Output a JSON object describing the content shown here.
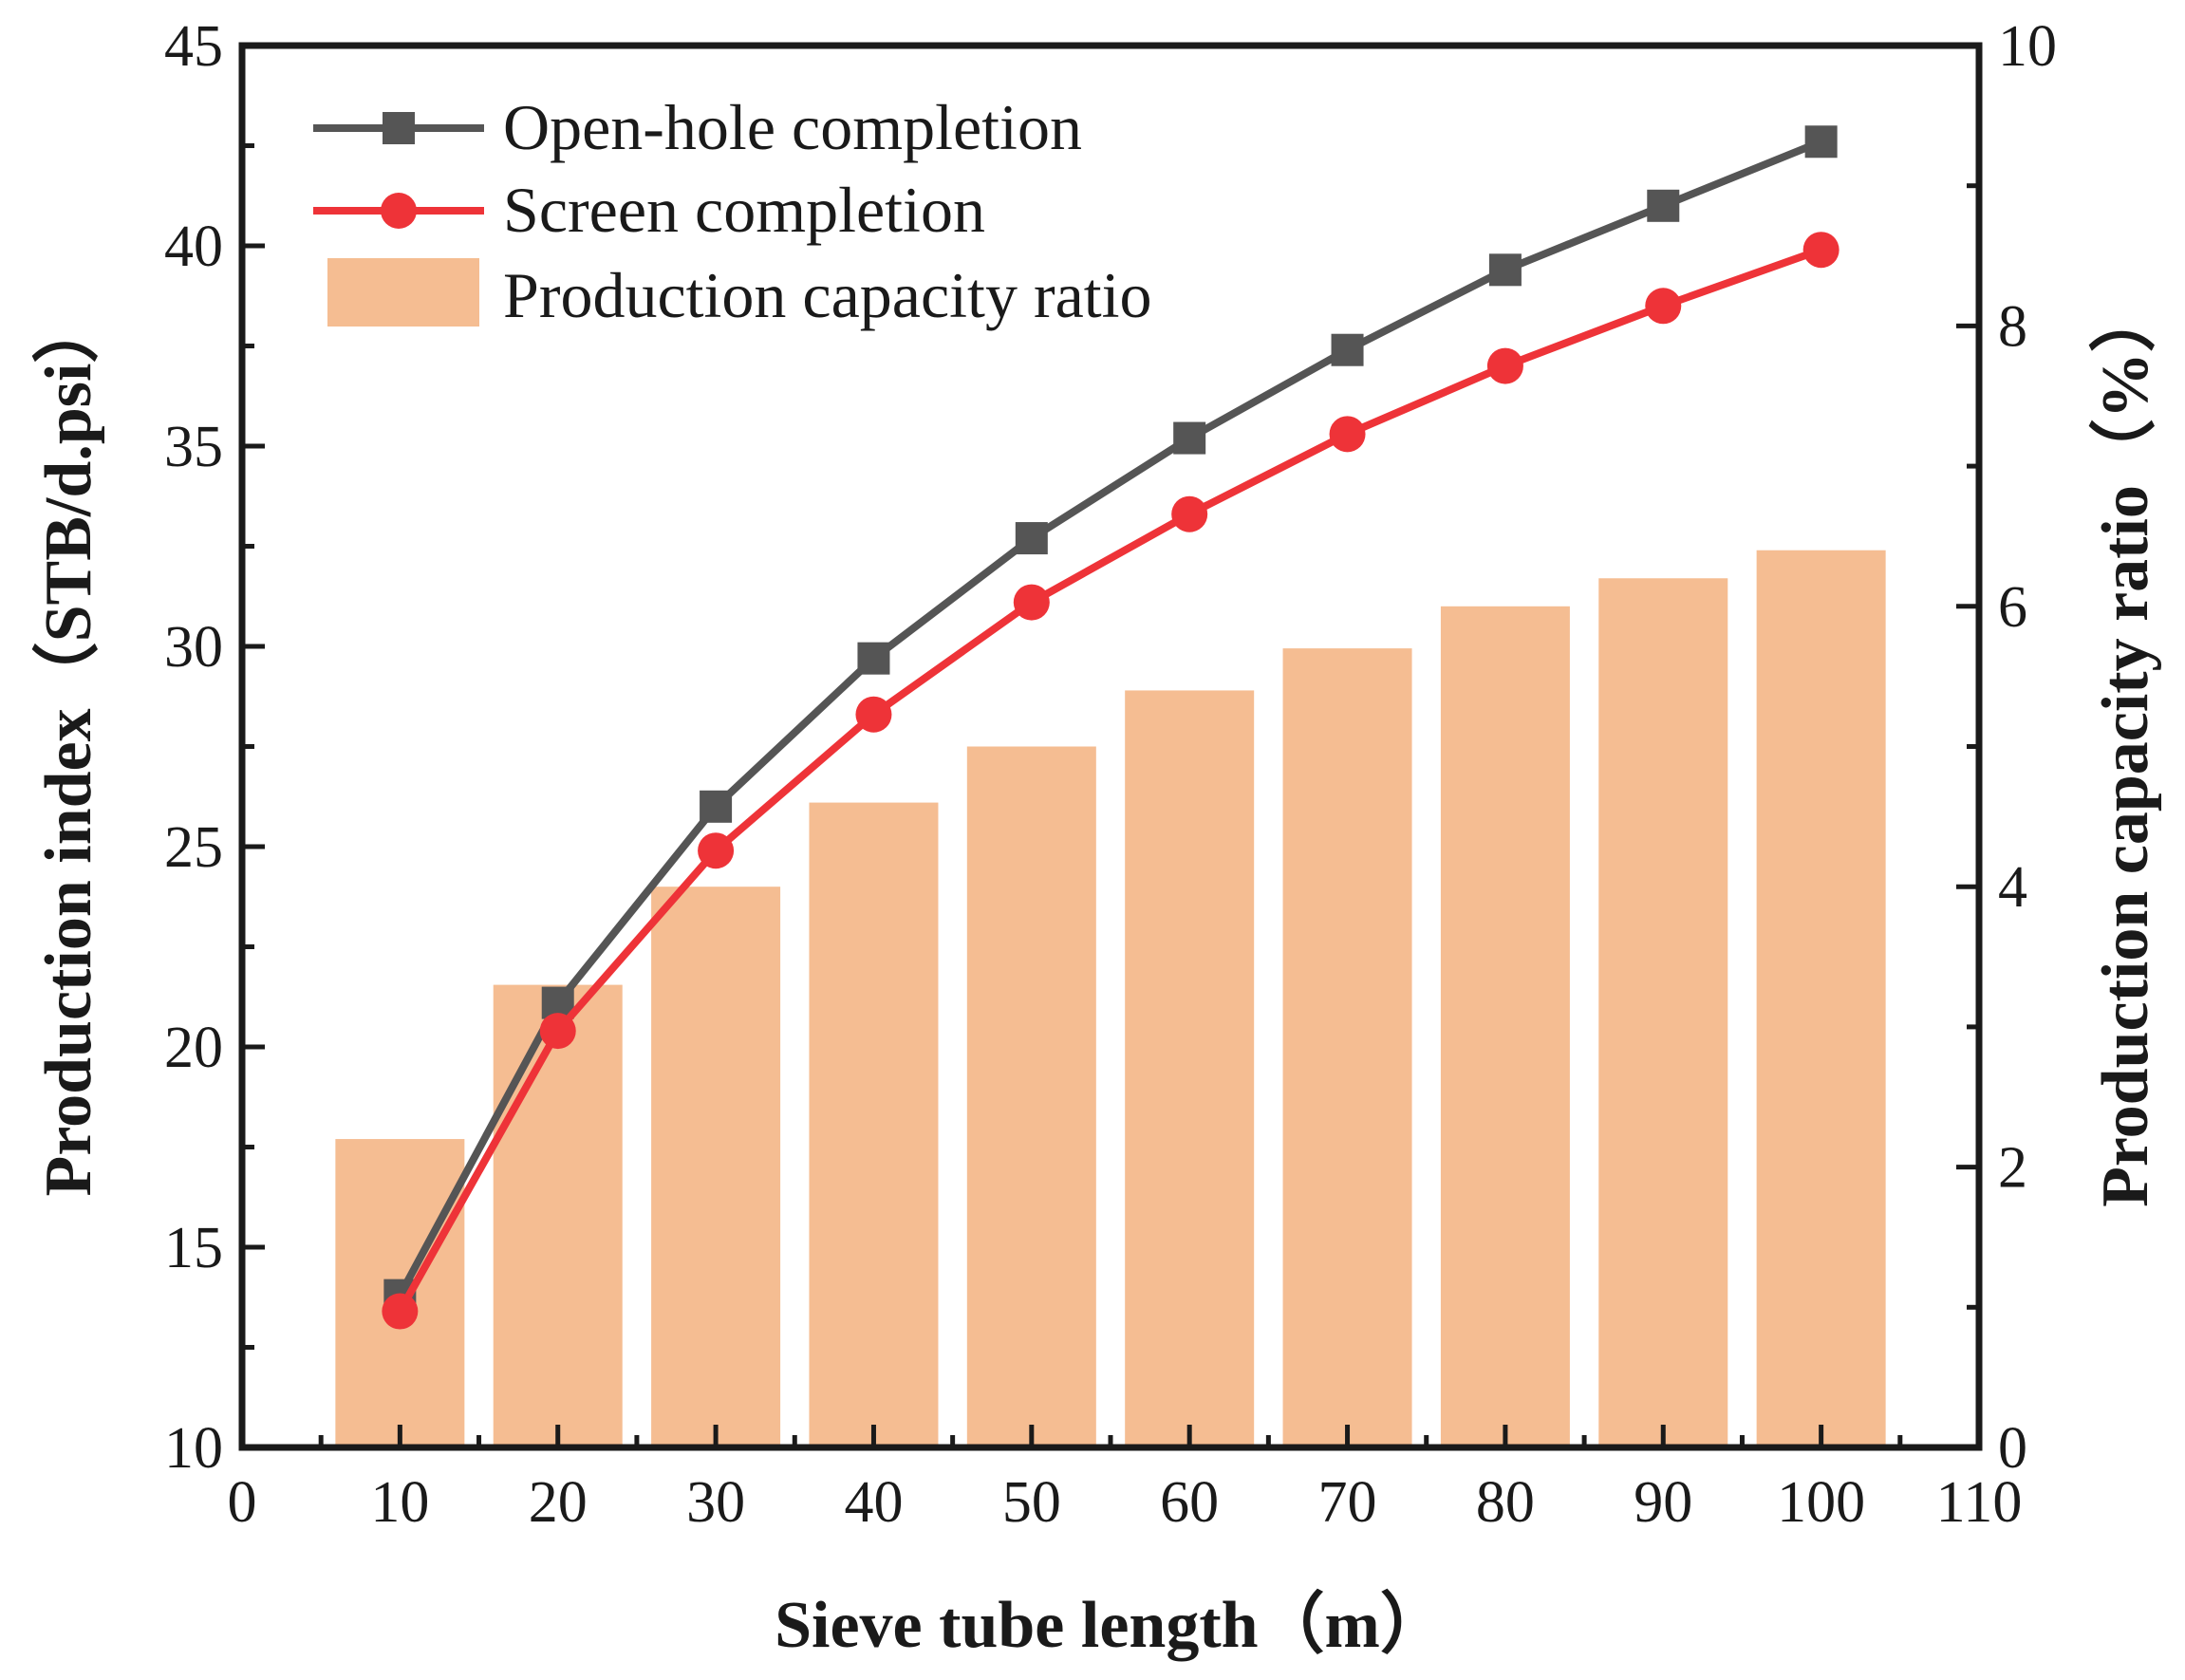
{
  "chart_data": {
    "type": "bar+line (dual axis)",
    "xlabel": "Sieve tube length（m）",
    "ylabel_left": "Production index（STB/d.psi）",
    "ylabel_right": "Production capacity ratio（%）",
    "xlim": [
      0,
      110
    ],
    "ylim_left": [
      10,
      45
    ],
    "ylim_right": [
      0,
      10
    ],
    "x_ticks": [
      0,
      10,
      20,
      30,
      40,
      50,
      60,
      70,
      80,
      90,
      100,
      110
    ],
    "y_left_ticks": [
      10,
      15,
      20,
      25,
      30,
      35,
      40,
      45
    ],
    "y_right_ticks": [
      0,
      2,
      4,
      6,
      8,
      10
    ],
    "x": [
      10,
      20,
      30,
      40,
      50,
      60,
      70,
      80,
      90,
      100
    ],
    "series": [
      {
        "name": "Open-hole completion",
        "type": "line",
        "axis": "left",
        "marker": "square",
        "color": "#555555",
        "values": [
          13.8,
          21.1,
          26.0,
          29.7,
          32.7,
          35.2,
          37.4,
          39.4,
          41.0,
          42.6
        ]
      },
      {
        "name": "Screen completion",
        "type": "line",
        "axis": "left",
        "marker": "circle",
        "color": "#ee3338",
        "values": [
          13.4,
          20.4,
          24.9,
          28.3,
          31.1,
          33.3,
          35.3,
          37.0,
          38.5,
          39.9
        ]
      },
      {
        "name": "Production capacity ratio",
        "type": "bar",
        "axis": "right",
        "color": "#f5bd92",
        "values": [
          2.2,
          3.3,
          4.0,
          4.6,
          5.0,
          5.4,
          5.7,
          6.0,
          6.2,
          6.4
        ]
      }
    ],
    "legend_position": "top-left"
  }
}
